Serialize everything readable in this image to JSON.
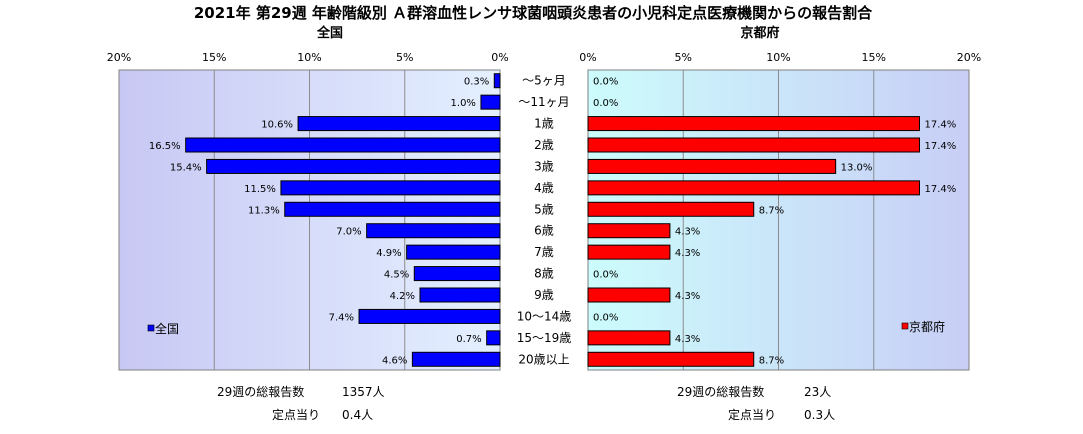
{
  "title": "2021年 第29週 年齢階級別 Ａ群溶血性レンサ球菌咽頭炎患者の小児科定点医療機関からの報告割合",
  "chart_data": [
    {
      "type": "bar",
      "orientation": "horizontal",
      "direction": "right-to-left",
      "title": "全国",
      "legend": "全国",
      "legend_position": "bottom-left",
      "color": "#0000ff",
      "xlim": [
        0,
        20
      ],
      "tick_labels": [
        "20%",
        "15%",
        "10%",
        "5%",
        "0%"
      ],
      "categories": [
        "～5ヶ月",
        "～11ヶ月",
        "1歳",
        "2歳",
        "3歳",
        "4歳",
        "5歳",
        "6歳",
        "7歳",
        "8歳",
        "9歳",
        "10～14歳",
        "15～19歳",
        "20歳以上"
      ],
      "values": [
        0.3,
        1.0,
        10.6,
        16.5,
        15.4,
        11.5,
        11.3,
        7.0,
        4.9,
        4.5,
        4.2,
        7.4,
        0.7,
        4.6
      ],
      "value_labels": [
        "0.3%",
        "1.0%",
        "10.6%",
        "16.5%",
        "15.4%",
        "11.5%",
        "11.3%",
        "7.0%",
        "4.9%",
        "4.5%",
        "4.2%",
        "7.4%",
        "0.7%",
        "4.6%"
      ],
      "grid": true
    },
    {
      "type": "bar",
      "orientation": "horizontal",
      "direction": "left-to-right",
      "title": "京都府",
      "legend": "京都府",
      "legend_position": "bottom-right",
      "color": "#ff0000",
      "xlim": [
        0,
        20
      ],
      "tick_labels": [
        "0%",
        "5%",
        "10%",
        "15%",
        "20%"
      ],
      "categories": [
        "～5ヶ月",
        "～11ヶ月",
        "1歳",
        "2歳",
        "3歳",
        "4歳",
        "5歳",
        "6歳",
        "7歳",
        "8歳",
        "9歳",
        "10～14歳",
        "15～19歳",
        "20歳以上"
      ],
      "values": [
        0.0,
        0.0,
        17.4,
        17.4,
        13.0,
        17.4,
        8.7,
        4.3,
        4.3,
        0.0,
        4.3,
        0.0,
        4.3,
        8.7
      ],
      "value_labels": [
        "0.0%",
        "0.0%",
        "17.4%",
        "17.4%",
        "13.0%",
        "17.4%",
        "8.7%",
        "4.3%",
        "4.3%",
        "0.0%",
        "4.3%",
        "0.0%",
        "4.3%",
        "8.7%"
      ],
      "grid": true
    }
  ],
  "stats": {
    "national": {
      "total_label": "29週の総報告数",
      "total_value": "1357人",
      "per_label": "定点当り",
      "per_value": "0.4人"
    },
    "kyoto": {
      "total_label": "29週の総報告数",
      "total_value": "23人",
      "per_label": "定点当り",
      "per_value": "0.3人"
    }
  }
}
